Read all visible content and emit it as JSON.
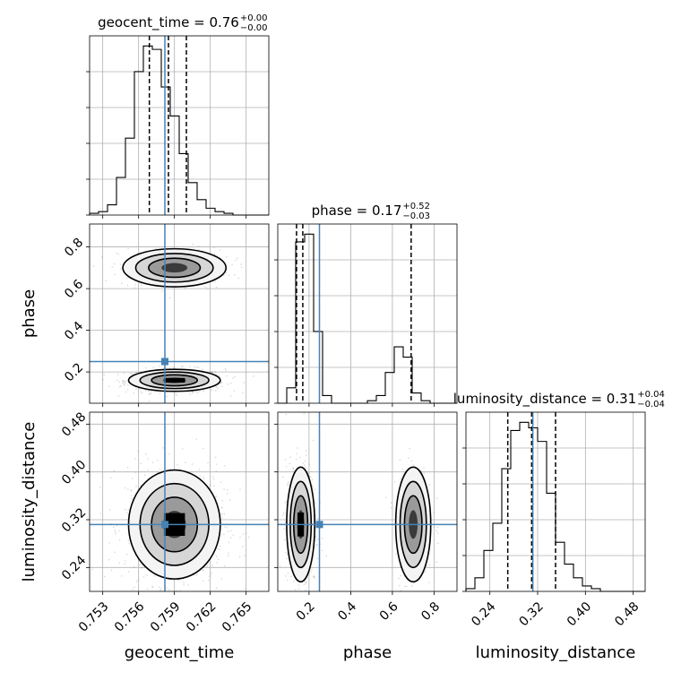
{
  "chart_data": {
    "type": "corner",
    "parameters": [
      "geocent_time",
      "phase",
      "luminosity_distance"
    ],
    "truths": {
      "geocent_time": 0.7582,
      "phase": 0.25,
      "luminosity_distance": 0.312
    },
    "colors": {
      "truth": "#4682b4",
      "contour": "#000000",
      "grid": "#b0b0b0",
      "points": "#808080"
    },
    "titles": [
      {
        "param": "geocent_time",
        "main": "geocent_time = 0.76",
        "plus": "+0.00",
        "minus": "−0.00"
      },
      {
        "param": "phase",
        "main": "phase = 0.17",
        "plus": "+0.52",
        "minus": "−0.03"
      },
      {
        "param": "luminosity_distance",
        "main": "luminosity_distance = 0.31",
        "plus": "+0.04",
        "minus": "−0.04"
      }
    ],
    "axis_labels": {
      "geocent_time": "geocent_time",
      "phase": "phase",
      "luminosity_distance": "luminosity_distance"
    },
    "ranges": {
      "geocent_time": [
        0.7519,
        0.7669
      ],
      "phase": [
        0.05,
        0.91
      ],
      "luminosity_distance": [
        0.2,
        0.5
      ]
    },
    "ticks": {
      "geocent_time": [
        "0.753",
        "0.756",
        "0.759",
        "0.762",
        "0.765"
      ],
      "phase": [
        "0.2",
        "0.4",
        "0.6",
        "0.8"
      ],
      "luminosity_distance": [
        "0.24",
        "0.32",
        "0.40",
        "0.48"
      ]
    },
    "histograms": {
      "geocent_time": {
        "edges_start": 0.7519,
        "bin_width": 0.00075,
        "counts": [
          1,
          2,
          6,
          22,
          45,
          84,
          99,
          97,
          75,
          58,
          36,
          19,
          9,
          4,
          2,
          1,
          0,
          0,
          0,
          0
        ],
        "quantiles": [
          0.7569,
          0.7585,
          0.76
        ]
      },
      "phase": {
        "edges_start": 0.05,
        "bin_width": 0.043,
        "counts": [
          0,
          6,
          63,
          66,
          28,
          3,
          0,
          0,
          0,
          0,
          1,
          3,
          12,
          22,
          18,
          4,
          1,
          0,
          0,
          0
        ],
        "quantiles": [
          0.14,
          0.17,
          0.69
        ]
      },
      "luminosity_distance": {
        "edges_start": 0.2,
        "bin_width": 0.015,
        "counts": [
          1,
          5,
          15,
          25,
          45,
          59,
          62,
          60,
          55,
          36,
          18,
          10,
          5,
          2,
          1,
          0,
          0,
          0,
          0,
          0
        ],
        "quantiles": [
          0.27,
          0.31,
          0.35
        ]
      }
    },
    "joint_modes": {
      "phase_vs_geocent_time": [
        {
          "x": 0.759,
          "y": 0.16,
          "sx": 0.0016,
          "sy": 0.022,
          "weight": 0.7
        },
        {
          "x": 0.759,
          "y": 0.7,
          "sx": 0.0018,
          "sy": 0.038,
          "weight": 0.3
        }
      ],
      "luminosity_distance_vs_geocent_time": [
        {
          "x": 0.759,
          "y": 0.312,
          "sx": 0.0016,
          "sy": 0.038,
          "weight": 1.0
        }
      ],
      "luminosity_distance_vs_phase": [
        {
          "x": 0.16,
          "y": 0.312,
          "sx": 0.028,
          "sy": 0.04,
          "weight": 0.7
        },
        {
          "x": 0.7,
          "y": 0.312,
          "sx": 0.035,
          "sy": 0.04,
          "weight": 0.3
        }
      ]
    },
    "grid": true
  }
}
